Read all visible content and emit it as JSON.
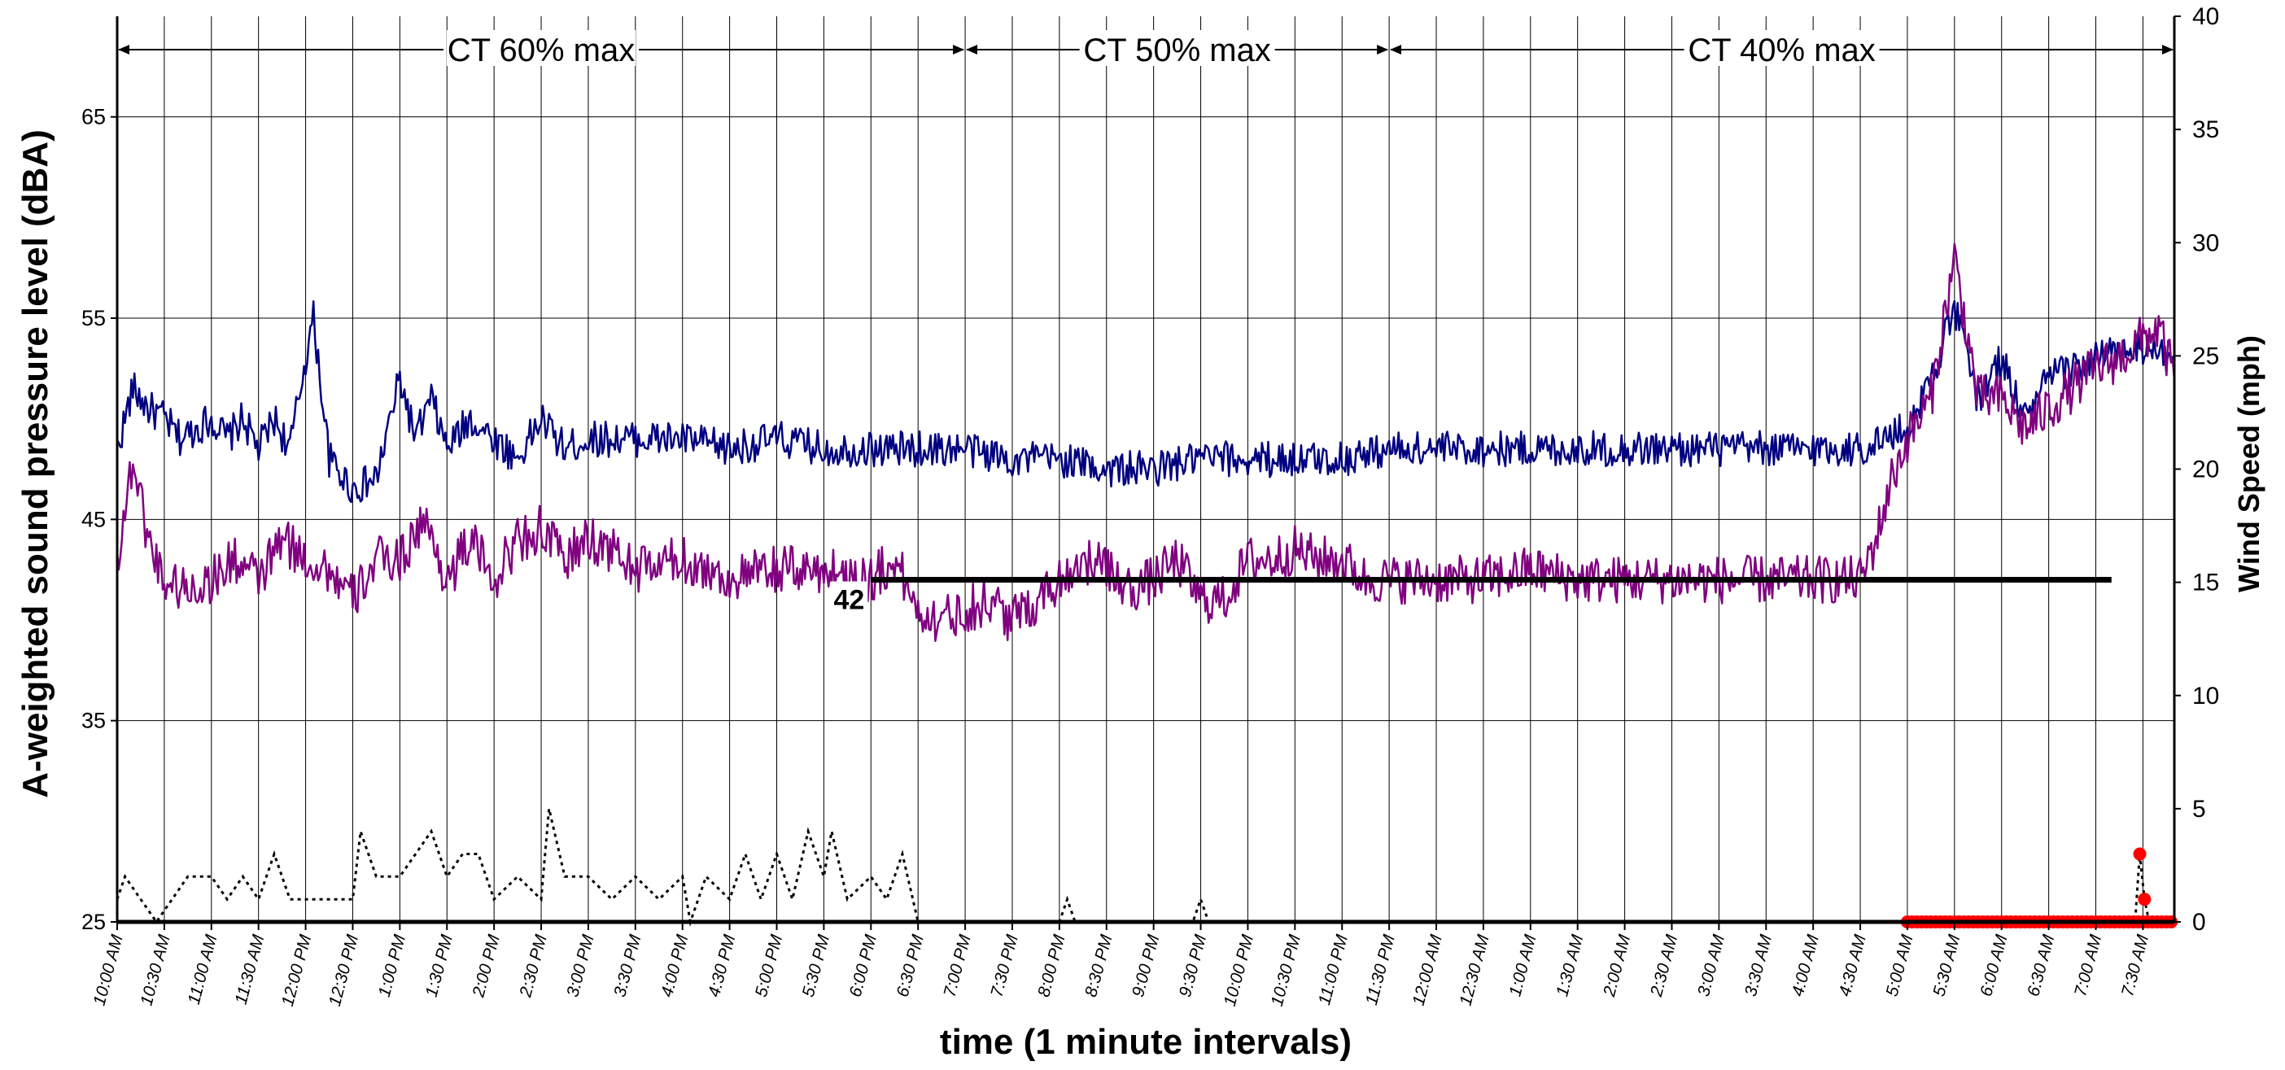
{
  "chart_data": {
    "type": "line",
    "title": "",
    "xlabel": "time (1 minute intervals)",
    "ylabel_left": "A-weighted sound pressure level (dBA)",
    "ylabel_right": "Wind Speed (mph)",
    "ylim_left": [
      25,
      70
    ],
    "yticks_left": [
      25,
      35,
      45,
      55,
      65
    ],
    "ylim_right": [
      0,
      40
    ],
    "yticks_right": [
      0,
      5,
      10,
      15,
      20,
      25,
      30,
      35,
      40
    ],
    "grid": true,
    "legend": "none",
    "x_start": "10:00 AM",
    "x_end": "7:50 AM",
    "x_tick_labels": [
      "10:00 AM",
      "10:30 AM",
      "11:00 AM",
      "11:30 AM",
      "12:00 PM",
      "12:30 PM",
      "1:00 PM",
      "1:30 PM",
      "2:00 PM",
      "2:30 PM",
      "3:00 PM",
      "3:30 PM",
      "4:00 PM",
      "4:30 PM",
      "5:00 PM",
      "5:30 PM",
      "6:00 PM",
      "6:30 PM",
      "7:00 PM",
      "7:30 PM",
      "8:00 PM",
      "8:30 PM",
      "9:00 PM",
      "9:30 PM",
      "10:00 PM",
      "10:30 PM",
      "11:00 PM",
      "11:30 PM",
      "12:00 AM",
      "12:30 AM",
      "1:00 AM",
      "1:30 AM",
      "2:00 AM",
      "2:30 AM",
      "3:00 AM",
      "3:30 AM",
      "4:00 AM",
      "4:30 AM",
      "5:00 AM",
      "5:30 AM",
      "6:00 AM",
      "6:30 AM",
      "7:00 AM",
      "7:30 AM"
    ],
    "regions": [
      {
        "label": "CT 60% max",
        "from": "10:00 AM",
        "to": "7:00 PM"
      },
      {
        "label": "CT 50% max",
        "from": "7:00 PM",
        "to": "11:30 PM"
      },
      {
        "label": "CT 40% max",
        "from": "11:30 PM",
        "to": "7:50 AM"
      }
    ],
    "reference_line": {
      "label": "42",
      "value": 42,
      "from": "6:00 PM",
      "to": "7:10 AM"
    },
    "series": [
      {
        "axis": "left",
        "color": "#000080",
        "style": "solid",
        "points": [
          [
            "10:00 AM",
            48.5
          ],
          [
            "10:10 AM",
            51.5
          ],
          [
            "10:20 AM",
            50.5
          ],
          [
            "10:30 AM",
            50
          ],
          [
            "10:40 AM",
            49
          ],
          [
            "10:50 AM",
            49.5
          ],
          [
            "11:00 AM",
            50
          ],
          [
            "11:10 AM",
            49
          ],
          [
            "11:20 AM",
            50
          ],
          [
            "11:30 AM",
            48.5
          ],
          [
            "11:40 AM",
            50
          ],
          [
            "11:50 AM",
            48.5
          ],
          [
            "12:00 PM",
            53
          ],
          [
            "12:05 PM",
            55
          ],
          [
            "12:15 PM",
            48
          ],
          [
            "12:30 PM",
            46.5
          ],
          [
            "12:45 PM",
            47
          ],
          [
            "1:00 PM",
            52
          ],
          [
            "1:10 PM",
            49
          ],
          [
            "1:20 PM",
            51
          ],
          [
            "1:30 PM",
            48.5
          ],
          [
            "1:45 PM",
            50
          ],
          [
            "2:00 PM",
            49
          ],
          [
            "2:15 PM",
            48
          ],
          [
            "2:30 PM",
            50
          ],
          [
            "2:45 PM",
            48.5
          ],
          [
            "3:00 PM",
            49
          ],
          [
            "3:30 PM",
            49
          ],
          [
            "4:00 PM",
            49
          ],
          [
            "4:30 PM",
            48.5
          ],
          [
            "5:00 PM",
            49
          ],
          [
            "5:30 PM",
            48.5
          ],
          [
            "6:00 PM",
            48.5
          ],
          [
            "6:30 PM",
            48.5
          ],
          [
            "7:00 PM",
            48.5
          ],
          [
            "7:30 PM",
            48
          ],
          [
            "8:00 PM",
            48
          ],
          [
            "8:30 PM",
            47.5
          ],
          [
            "9:00 PM",
            47.5
          ],
          [
            "9:30 PM",
            48
          ],
          [
            "10:00 PM",
            48
          ],
          [
            "10:30 PM",
            48
          ],
          [
            "11:00 PM",
            48
          ],
          [
            "11:30 PM",
            48.5
          ],
          [
            "12:00 AM",
            48.5
          ],
          [
            "12:30 AM",
            48.5
          ],
          [
            "1:00 AM",
            48.5
          ],
          [
            "1:30 AM",
            48.5
          ],
          [
            "2:00 AM",
            48.5
          ],
          [
            "2:30 AM",
            48.5
          ],
          [
            "3:00 AM",
            48.5
          ],
          [
            "3:30 AM",
            48.5
          ],
          [
            "4:00 AM",
            48.5
          ],
          [
            "4:30 AM",
            48.5
          ],
          [
            "5:00 AM",
            49.5
          ],
          [
            "5:15 AM",
            52
          ],
          [
            "5:30 AM",
            55.5
          ],
          [
            "5:45 AM",
            51
          ],
          [
            "6:00 AM",
            53
          ],
          [
            "6:15 AM",
            50
          ],
          [
            "6:30 AM",
            52
          ],
          [
            "7:00 AM",
            53
          ],
          [
            "7:30 AM",
            53.5
          ],
          [
            "7:50 AM",
            53
          ]
        ]
      },
      {
        "axis": "left",
        "color": "#800080",
        "style": "solid",
        "points": [
          [
            "10:00 AM",
            43
          ],
          [
            "10:10 AM",
            48
          ],
          [
            "10:20 AM",
            44
          ],
          [
            "10:30 AM",
            42
          ],
          [
            "10:45 AM",
            41.5
          ],
          [
            "11:00 AM",
            42
          ],
          [
            "11:15 AM",
            43
          ],
          [
            "11:30 AM",
            42
          ],
          [
            "11:45 AM",
            44
          ],
          [
            "12:00 PM",
            43
          ],
          [
            "12:15 PM",
            42.5
          ],
          [
            "12:30 PM",
            41
          ],
          [
            "12:45 PM",
            43
          ],
          [
            "1:00 PM",
            43
          ],
          [
            "1:15 PM",
            45
          ],
          [
            "1:30 PM",
            42
          ],
          [
            "1:45 PM",
            44
          ],
          [
            "2:00 PM",
            42
          ],
          [
            "2:15 PM",
            44
          ],
          [
            "2:30 PM",
            44.5
          ],
          [
            "2:45 PM",
            43
          ],
          [
            "3:00 PM",
            44
          ],
          [
            "3:15 PM",
            43.5
          ],
          [
            "3:30 PM",
            42.5
          ],
          [
            "4:00 PM",
            43
          ],
          [
            "4:30 PM",
            42
          ],
          [
            "5:00 PM",
            42.5
          ],
          [
            "5:30 PM",
            42.5
          ],
          [
            "6:00 PM",
            42
          ],
          [
            "6:15 PM",
            43
          ],
          [
            "6:30 PM",
            40.5
          ],
          [
            "6:45 PM",
            40
          ],
          [
            "7:00 PM",
            40.5
          ],
          [
            "7:15 PM",
            41
          ],
          [
            "7:30 PM",
            40
          ],
          [
            "7:45 PM",
            41
          ],
          [
            "8:00 PM",
            42
          ],
          [
            "8:15 PM",
            43
          ],
          [
            "8:30 PM",
            42.5
          ],
          [
            "8:45 PM",
            41.5
          ],
          [
            "9:00 PM",
            42
          ],
          [
            "9:15 PM",
            43
          ],
          [
            "9:30 PM",
            41
          ],
          [
            "9:45 PM",
            41
          ],
          [
            "10:00 PM",
            43
          ],
          [
            "10:15 PM",
            43
          ],
          [
            "10:30 PM",
            43.5
          ],
          [
            "10:45 PM",
            43
          ],
          [
            "11:00 PM",
            43
          ],
          [
            "11:15 PM",
            42
          ],
          [
            "11:30 PM",
            42
          ],
          [
            "11:45 PM",
            42
          ],
          [
            "12:00 AM",
            42
          ],
          [
            "12:30 AM",
            42
          ],
          [
            "1:00 AM",
            42.5
          ],
          [
            "1:30 AM",
            42
          ],
          [
            "2:00 AM",
            42
          ],
          [
            "2:30 AM",
            42
          ],
          [
            "3:00 AM",
            42
          ],
          [
            "3:30 AM",
            42
          ],
          [
            "4:00 AM",
            42
          ],
          [
            "4:30 AM",
            42
          ],
          [
            "4:40 AM",
            44
          ],
          [
            "4:50 AM",
            47
          ],
          [
            "5:00 AM",
            49
          ],
          [
            "5:15 AM",
            51
          ],
          [
            "5:30 AM",
            58
          ],
          [
            "5:45 AM",
            51
          ],
          [
            "6:00 AM",
            51
          ],
          [
            "6:15 AM",
            49.5
          ],
          [
            "6:30 AM",
            50.5
          ],
          [
            "7:00 AM",
            52.5
          ],
          [
            "7:15 AM",
            53
          ],
          [
            "7:30 AM",
            54
          ],
          [
            "7:40 AM",
            54.5
          ],
          [
            "7:50 AM",
            52
          ]
        ]
      },
      {
        "axis": "right",
        "color": "#000000",
        "style": "dotted",
        "points": [
          [
            "10:00 AM",
            1
          ],
          [
            "10:05 AM",
            2
          ],
          [
            "10:15 AM",
            1
          ],
          [
            "10:25 AM",
            0
          ],
          [
            "10:35 AM",
            1
          ],
          [
            "10:45 AM",
            2
          ],
          [
            "11:00 AM",
            2
          ],
          [
            "11:10 AM",
            1
          ],
          [
            "11:20 AM",
            2
          ],
          [
            "11:30 AM",
            1
          ],
          [
            "11:40 AM",
            3
          ],
          [
            "11:50 AM",
            1
          ],
          [
            "12:00 PM",
            1
          ],
          [
            "12:30 PM",
            1
          ],
          [
            "12:35 PM",
            4
          ],
          [
            "12:45 PM",
            2
          ],
          [
            "1:00 PM",
            2
          ],
          [
            "1:10 PM",
            3
          ],
          [
            "1:20 PM",
            4
          ],
          [
            "1:30 PM",
            2
          ],
          [
            "1:40 PM",
            3
          ],
          [
            "1:50 PM",
            3
          ],
          [
            "2:00 PM",
            1
          ],
          [
            "2:15 PM",
            2
          ],
          [
            "2:30 PM",
            1
          ],
          [
            "2:35 PM",
            5
          ],
          [
            "2:45 PM",
            2
          ],
          [
            "3:00 PM",
            2
          ],
          [
            "3:15 PM",
            1
          ],
          [
            "3:30 PM",
            2
          ],
          [
            "3:45 PM",
            1
          ],
          [
            "4:00 PM",
            2
          ],
          [
            "4:05 PM",
            0
          ],
          [
            "4:15 PM",
            2
          ],
          [
            "4:30 PM",
            1
          ],
          [
            "4:40 PM",
            3
          ],
          [
            "4:50 PM",
            1
          ],
          [
            "5:00 PM",
            3
          ],
          [
            "5:10 PM",
            1
          ],
          [
            "5:20 PM",
            4
          ],
          [
            "5:30 PM",
            2
          ],
          [
            "5:35 PM",
            4
          ],
          [
            "5:45 PM",
            1
          ],
          [
            "6:00 PM",
            2
          ],
          [
            "6:10 PM",
            1
          ],
          [
            "6:20 PM",
            3
          ],
          [
            "6:30 PM",
            0
          ],
          [
            "8:00 PM",
            0
          ],
          [
            "8:05 PM",
            1
          ],
          [
            "8:10 PM",
            0
          ],
          [
            "9:25 PM",
            0
          ],
          [
            "9:30 PM",
            1
          ],
          [
            "9:35 PM",
            0
          ],
          [
            "7:25 AM",
            0
          ],
          [
            "7:28 AM",
            3
          ],
          [
            "7:31 AM",
            1
          ],
          [
            "7:34 AM",
            0
          ],
          [
            "7:50 AM",
            0
          ]
        ]
      }
    ],
    "calm_markers": {
      "color": "#ff0000",
      "value": 0,
      "from": "5:00 AM",
      "to": "7:50 AM",
      "highlight_points": [
        [
          "7:28 AM",
          3
        ],
        [
          "7:31 AM",
          1
        ]
      ]
    }
  }
}
